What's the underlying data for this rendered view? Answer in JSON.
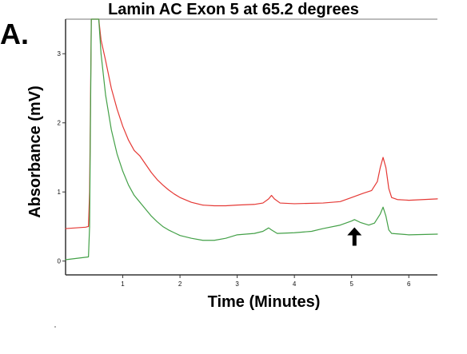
{
  "figure": {
    "panel_label": "A.",
    "title": "Lamin AC Exon 5 at 65.2 degrees",
    "xlabel": "Time (Minutes)",
    "ylabel": "Absorbance (mV)"
  },
  "chart_data": {
    "type": "line",
    "title": "Lamin AC Exon 5 at 65.2 degrees",
    "xlabel": "Time (Minutes)",
    "ylabel": "Absorbance (mV)",
    "xlim": [
      0,
      6.5
    ],
    "ylim": [
      -0.2,
      3.5
    ],
    "x_ticks": [
      1,
      2,
      3,
      4,
      5,
      6
    ],
    "y_ticks": [
      0,
      1,
      2,
      3
    ],
    "grid": false,
    "series": [
      {
        "color": "#e53935",
        "points": [
          [
            0,
            0.47
          ],
          [
            0.35,
            0.49
          ],
          [
            0.4,
            0.5
          ],
          [
            0.42,
            1.0
          ],
          [
            0.45,
            3.5
          ],
          [
            0.58,
            3.5
          ],
          [
            0.62,
            3.2
          ],
          [
            0.7,
            2.9
          ],
          [
            0.8,
            2.5
          ],
          [
            0.9,
            2.2
          ],
          [
            1.0,
            1.95
          ],
          [
            1.1,
            1.75
          ],
          [
            1.2,
            1.6
          ],
          [
            1.3,
            1.52
          ],
          [
            1.4,
            1.4
          ],
          [
            1.5,
            1.28
          ],
          [
            1.6,
            1.18
          ],
          [
            1.7,
            1.1
          ],
          [
            1.8,
            1.03
          ],
          [
            1.9,
            0.97
          ],
          [
            2.0,
            0.92
          ],
          [
            2.2,
            0.85
          ],
          [
            2.4,
            0.81
          ],
          [
            2.6,
            0.8
          ],
          [
            2.8,
            0.8
          ],
          [
            3.0,
            0.81
          ],
          [
            3.3,
            0.82
          ],
          [
            3.45,
            0.84
          ],
          [
            3.55,
            0.9
          ],
          [
            3.6,
            0.95
          ],
          [
            3.65,
            0.9
          ],
          [
            3.75,
            0.84
          ],
          [
            4.0,
            0.83
          ],
          [
            4.5,
            0.84
          ],
          [
            4.8,
            0.86
          ],
          [
            5.0,
            0.92
          ],
          [
            5.2,
            0.98
          ],
          [
            5.35,
            1.02
          ],
          [
            5.45,
            1.15
          ],
          [
            5.5,
            1.35
          ],
          [
            5.55,
            1.5
          ],
          [
            5.6,
            1.35
          ],
          [
            5.65,
            1.05
          ],
          [
            5.7,
            0.92
          ],
          [
            5.8,
            0.89
          ],
          [
            6.0,
            0.88
          ],
          [
            6.5,
            0.9
          ]
        ]
      },
      {
        "color": "#43a047",
        "points": [
          [
            0,
            0.02
          ],
          [
            0.3,
            0.05
          ],
          [
            0.4,
            0.06
          ],
          [
            0.42,
            0.5
          ],
          [
            0.45,
            3.5
          ],
          [
            0.58,
            3.5
          ],
          [
            0.62,
            3.0
          ],
          [
            0.7,
            2.4
          ],
          [
            0.8,
            1.9
          ],
          [
            0.9,
            1.55
          ],
          [
            1.0,
            1.3
          ],
          [
            1.1,
            1.1
          ],
          [
            1.2,
            0.95
          ],
          [
            1.3,
            0.85
          ],
          [
            1.4,
            0.75
          ],
          [
            1.5,
            0.65
          ],
          [
            1.6,
            0.57
          ],
          [
            1.7,
            0.5
          ],
          [
            1.8,
            0.45
          ],
          [
            1.9,
            0.41
          ],
          [
            2.0,
            0.37
          ],
          [
            2.2,
            0.33
          ],
          [
            2.4,
            0.3
          ],
          [
            2.6,
            0.3
          ],
          [
            2.8,
            0.33
          ],
          [
            3.0,
            0.38
          ],
          [
            3.3,
            0.4
          ],
          [
            3.45,
            0.43
          ],
          [
            3.55,
            0.48
          ],
          [
            3.6,
            0.45
          ],
          [
            3.7,
            0.4
          ],
          [
            4.0,
            0.41
          ],
          [
            4.3,
            0.43
          ],
          [
            4.5,
            0.47
          ],
          [
            4.8,
            0.52
          ],
          [
            5.0,
            0.58
          ],
          [
            5.05,
            0.6
          ],
          [
            5.15,
            0.56
          ],
          [
            5.3,
            0.52
          ],
          [
            5.4,
            0.55
          ],
          [
            5.5,
            0.68
          ],
          [
            5.55,
            0.78
          ],
          [
            5.6,
            0.65
          ],
          [
            5.65,
            0.45
          ],
          [
            5.7,
            0.4
          ],
          [
            6.0,
            0.38
          ],
          [
            6.5,
            0.39
          ]
        ]
      }
    ],
    "annotations": [
      {
        "type": "arrow",
        "direction": "up",
        "x": 5.05,
        "y": 0.06
      }
    ]
  }
}
